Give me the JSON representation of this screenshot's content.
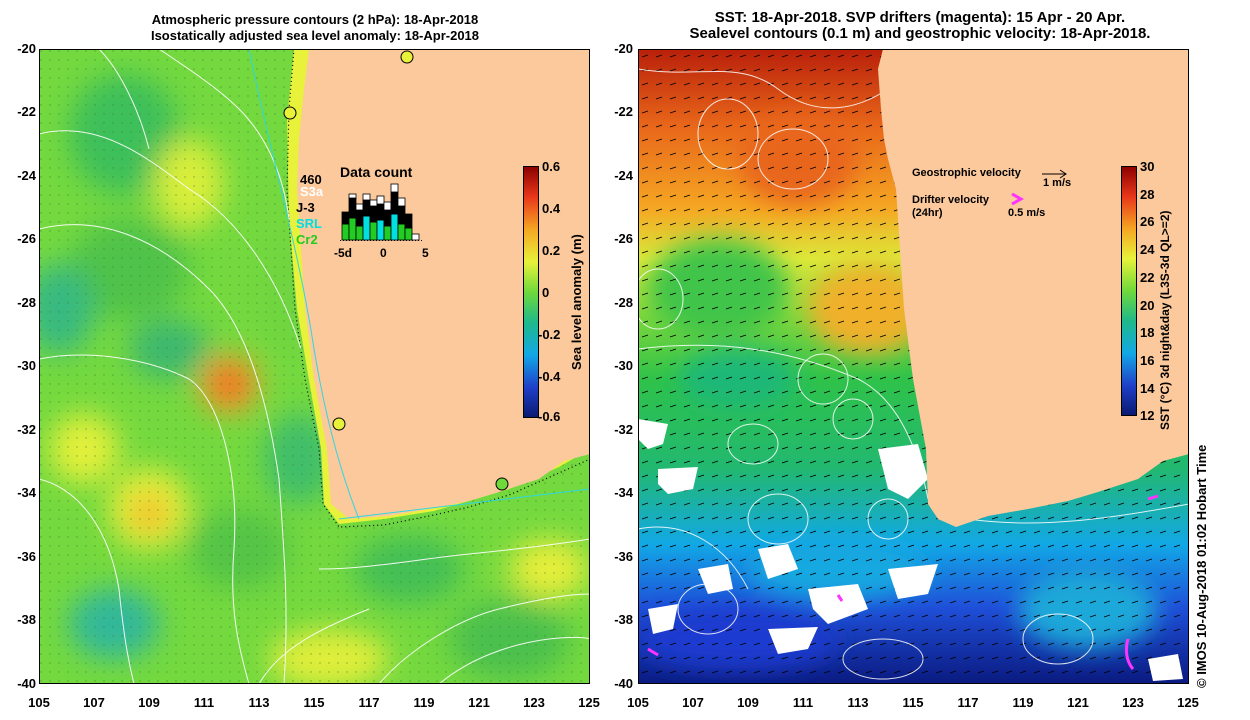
{
  "left_panel": {
    "title_line1": "Atmospheric pressure contours (2 hPa): 18-Apr-2018",
    "title_line2": "Isostatically adjusted sea level anomaly: 18-Apr-2018",
    "y_ticks": [
      "-20",
      "-22",
      "-24",
      "-26",
      "-28",
      "-30",
      "-32",
      "-34",
      "-36",
      "-38",
      "-40"
    ],
    "x_ticks": [
      "105",
      "107",
      "109",
      "111",
      "113",
      "115",
      "117",
      "119",
      "121",
      "123",
      "125"
    ],
    "colorbar": {
      "label": "Sea level anomaly (m)",
      "ticks": [
        "0.6",
        "0.4",
        "0.2",
        "0",
        "-0.2",
        "-0.4",
        "-0.6"
      ]
    },
    "inset": {
      "title": "Data count",
      "total": "460",
      "legend": [
        {
          "name": "S3a",
          "color": "#ffffff"
        },
        {
          "name": "J-3",
          "color": "#000000"
        },
        {
          "name": "SRL",
          "color": "#00e0e0"
        },
        {
          "name": "Cr2",
          "color": "#22cc22"
        }
      ],
      "x_ticks": [
        "-5d",
        "0",
        "5"
      ]
    }
  },
  "right_panel": {
    "title_line1": "SST: 18-Apr-2018. SVP drifters (magenta): 15 Apr - 20 Apr.",
    "title_line2": "Sealevel contours (0.1 m) and geostrophic velocity: 18-Apr-2018.",
    "y_ticks": [
      "-20",
      "-22",
      "-24",
      "-26",
      "-28",
      "-30",
      "-32",
      "-34",
      "-36",
      "-38",
      "-40"
    ],
    "x_ticks": [
      "105",
      "107",
      "109",
      "111",
      "113",
      "115",
      "117",
      "119",
      "121",
      "123",
      "125"
    ],
    "colorbar": {
      "label": "SST (°C) 3d night&day (L3S-3d QL>=2)",
      "ticks": [
        "30",
        "28",
        "26",
        "24",
        "22",
        "20",
        "18",
        "16",
        "14",
        "12"
      ]
    },
    "legend": {
      "geo_label": "Geostrophic velocity",
      "geo_scale": "1 m/s",
      "drifter_label_line1": "Drifter velocity",
      "drifter_label_line2": "(24hr)",
      "drifter_scale": "0.5 m/s"
    }
  },
  "footer": {
    "credit": "© IMOS 10-Aug-2018 01:02 Hobart Time"
  },
  "colors": {
    "land": "#fbc99c",
    "sla_green": "#6fd93b",
    "sla_yellow": "#e8f23a",
    "drifter": "#ff33ff"
  }
}
